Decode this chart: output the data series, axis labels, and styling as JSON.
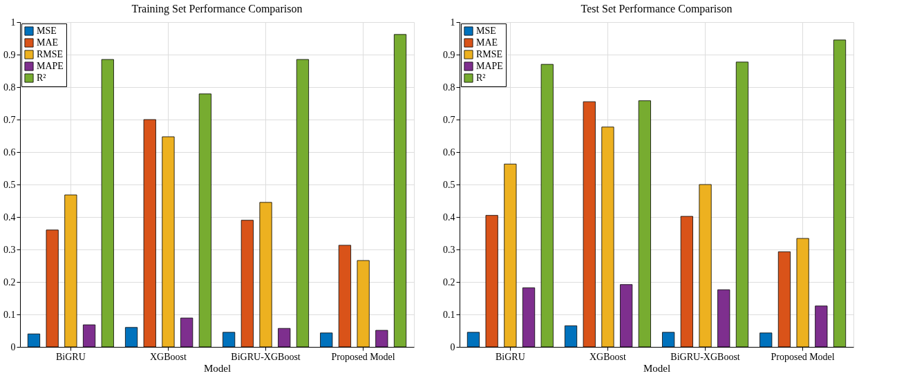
{
  "chart_data": [
    {
      "type": "bar",
      "title": "Training Set Performance Comparison",
      "xlabel": "Model",
      "categories": [
        "BiGRU",
        "XGBoost",
        "BiGRU-XGBoost",
        "Proposed Model"
      ],
      "series": [
        {
          "name": "MSE",
          "color": "#0072bd",
          "values": [
            0.04,
            0.06,
            0.045,
            0.043
          ]
        },
        {
          "name": "MAE",
          "color": "#d95319",
          "values": [
            0.36,
            0.7,
            0.39,
            0.313
          ]
        },
        {
          "name": "RMSE",
          "color": "#edb120",
          "values": [
            0.468,
            0.647,
            0.445,
            0.266
          ]
        },
        {
          "name": "MAPE",
          "color": "#7e2f8e",
          "values": [
            0.068,
            0.089,
            0.057,
            0.051
          ]
        },
        {
          "name": "R²",
          "color": "#77ac30",
          "values": [
            0.885,
            0.779,
            0.885,
            0.962
          ]
        }
      ],
      "ylim": [
        0,
        1
      ],
      "yticks": [
        0,
        0.1,
        0.2,
        0.3,
        0.4,
        0.5,
        0.6,
        0.7,
        0.8,
        0.9,
        1
      ],
      "grid": true,
      "legend": "top left"
    },
    {
      "type": "bar",
      "title": "Test Set Performance Comparison",
      "xlabel": "Model",
      "categories": [
        "BiGRU",
        "XGBoost",
        "BiGRU-XGBoost",
        "Proposed Model"
      ],
      "series": [
        {
          "name": "MSE",
          "color": "#0072bd",
          "values": [
            0.045,
            0.065,
            0.045,
            0.043
          ]
        },
        {
          "name": "MAE",
          "color": "#d95319",
          "values": [
            0.405,
            0.755,
            0.402,
            0.293
          ]
        },
        {
          "name": "RMSE",
          "color": "#edb120",
          "values": [
            0.563,
            0.677,
            0.5,
            0.334
          ]
        },
        {
          "name": "MAPE",
          "color": "#7e2f8e",
          "values": [
            0.182,
            0.192,
            0.176,
            0.126
          ]
        },
        {
          "name": "R²",
          "color": "#77ac30",
          "values": [
            0.87,
            0.758,
            0.877,
            0.945
          ]
        }
      ],
      "ylim": [
        0,
        1
      ],
      "yticks": [
        0,
        0.1,
        0.2,
        0.3,
        0.4,
        0.5,
        0.6,
        0.7,
        0.8,
        0.9,
        1
      ],
      "grid": true,
      "legend": "top left"
    }
  ]
}
